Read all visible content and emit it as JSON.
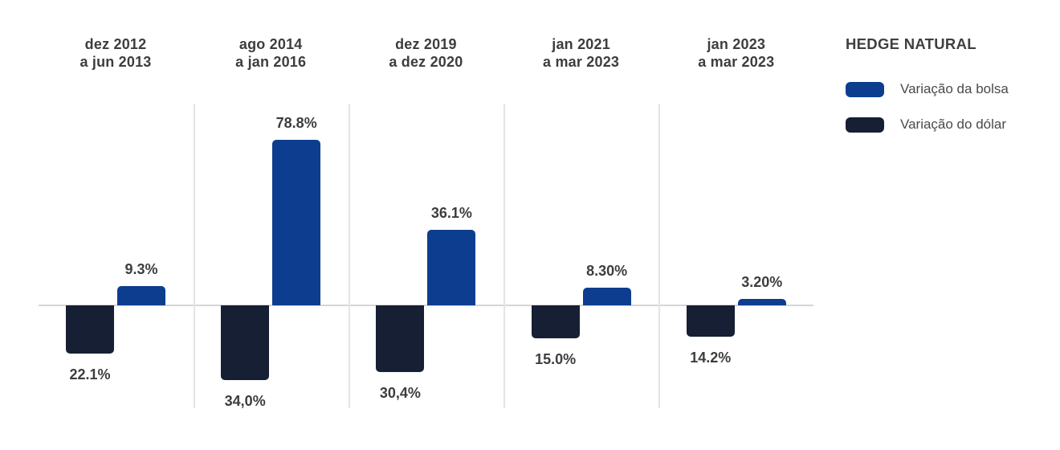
{
  "legend": {
    "title": "HEDGE NATURAL",
    "items": [
      {
        "label": "Variação da bolsa",
        "color": "#0D3D8F"
      },
      {
        "label": "Variação do dólar",
        "color": "#161F33"
      }
    ]
  },
  "chart_data": {
    "type": "bar",
    "title": "HEDGE NATURAL",
    "orientation": "diverging-vertical",
    "unit": "%",
    "baseline": 0,
    "grid": "vertical dividers between category groups, single horizontal zero line, no y-axis ticks",
    "legend_position": "top-right",
    "categories": [
      "dez 2012 a jun 2013",
      "ago 2014 a jan 2016",
      "dez 2019 a dez 2020",
      "jan 2021 a mar 2023",
      "jan 2023 a mar 2023"
    ],
    "category_lines": [
      [
        "dez 2012",
        "a jun 2013"
      ],
      [
        "ago 2014",
        "a jan 2016"
      ],
      [
        "dez 2019",
        "a dez 2020"
      ],
      [
        "jan 2021",
        "a mar 2023"
      ],
      [
        "jan 2023",
        "a mar 2023"
      ]
    ],
    "series": [
      {
        "name": "Variação da bolsa",
        "color": "#0D3D8F",
        "direction": "up",
        "values": [
          9.3,
          78.8,
          36.1,
          8.3,
          3.2
        ],
        "value_labels": [
          "9.3%",
          "78.8%",
          "36.1%",
          "8.30%",
          "3.20%"
        ]
      },
      {
        "name": "Variação do dólar",
        "color": "#161F33",
        "direction": "down",
        "values": [
          22.1,
          34.0,
          30.4,
          15.0,
          14.2
        ],
        "value_labels": [
          "22.1%",
          "34,0%",
          "30,4%",
          "15.0%",
          "14.2%"
        ]
      }
    ],
    "colors": {
      "zero_line": "#D6D6D6",
      "divider": "#E4E4E4",
      "heading_text": "#3D3D3D",
      "value_label_text": "#3D3D3D",
      "legend_title_text": "#3F3F3F",
      "legend_label_text": "#4A4A4A",
      "background": "#FFFFFF"
    }
  }
}
